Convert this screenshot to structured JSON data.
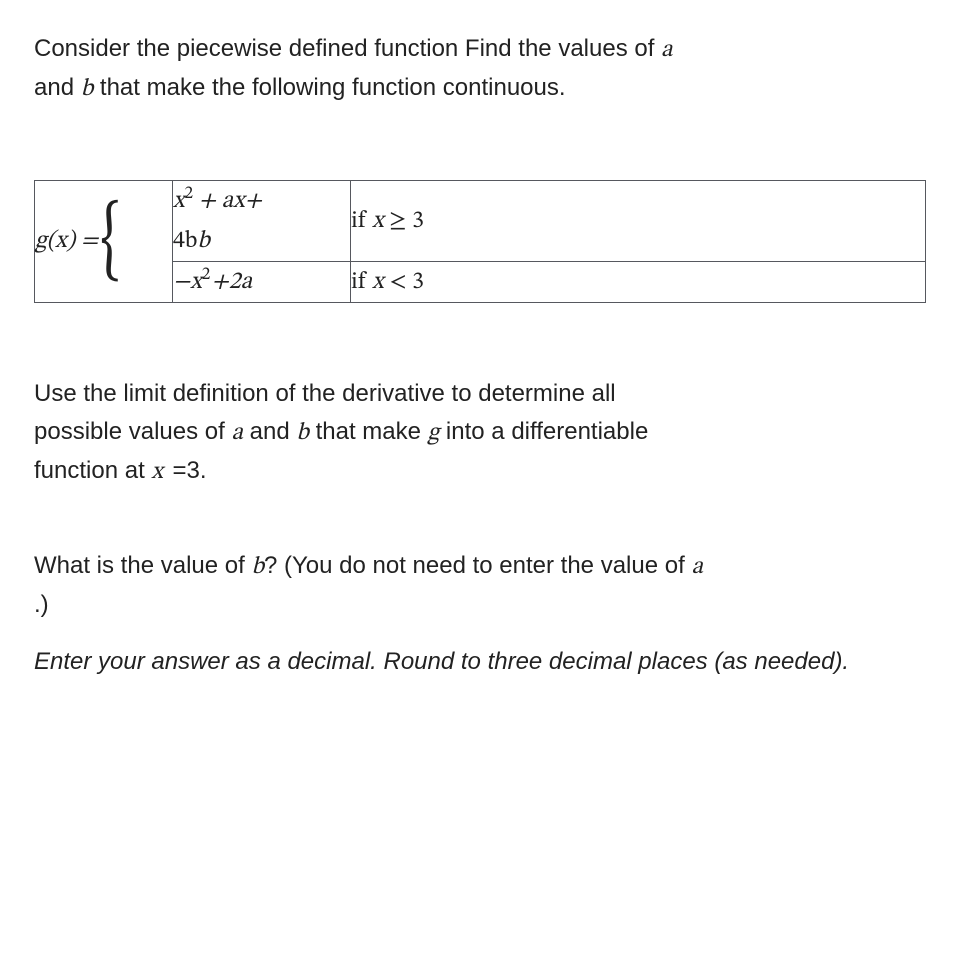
{
  "intro": {
    "line1_pre": "Consider the piecewise defined function Find the values of ",
    "a": "a",
    "line2_pre": "and ",
    "b": "b",
    "line2_post": " that make the following function continuous."
  },
  "formula": {
    "lhs": "g(x) = ",
    "row1_expr_l1": "x",
    "row1_expr_sup": "2",
    "row1_expr_l1b": " + ax+",
    "row1_expr_l2": "4b",
    "row1_cond_pre": "if ",
    "row1_cond_var": "x",
    "row1_cond_op": " ≥ 3",
    "row2_expr_a": "−x",
    "row2_expr_sup": "2",
    "row2_expr_b": "+2a",
    "row2_cond_pre": "if ",
    "row2_cond_var": "x",
    "row2_cond_op": " < 3"
  },
  "mid": {
    "l1": "Use the limit definition of the derivative to determine all",
    "l2_pre": "possible values of ",
    "l2_a": "a",
    "l2_and": " and ",
    "l2_b": "b",
    "l2_make": " that make ",
    "l2_g": "g",
    "l2_post": " into a differentiable",
    "l3_pre": "function at ",
    "l3_x": "x",
    "l3_eq": " =",
    "l3_val": "3."
  },
  "q": {
    "pre": "What is the value of ",
    "b": "b",
    "mid": "? (You do not need to enter the value of ",
    "a": "a",
    "post": ".)"
  },
  "instr": "Enter your answer as a decimal. Round to three decimal places (as needed)."
}
